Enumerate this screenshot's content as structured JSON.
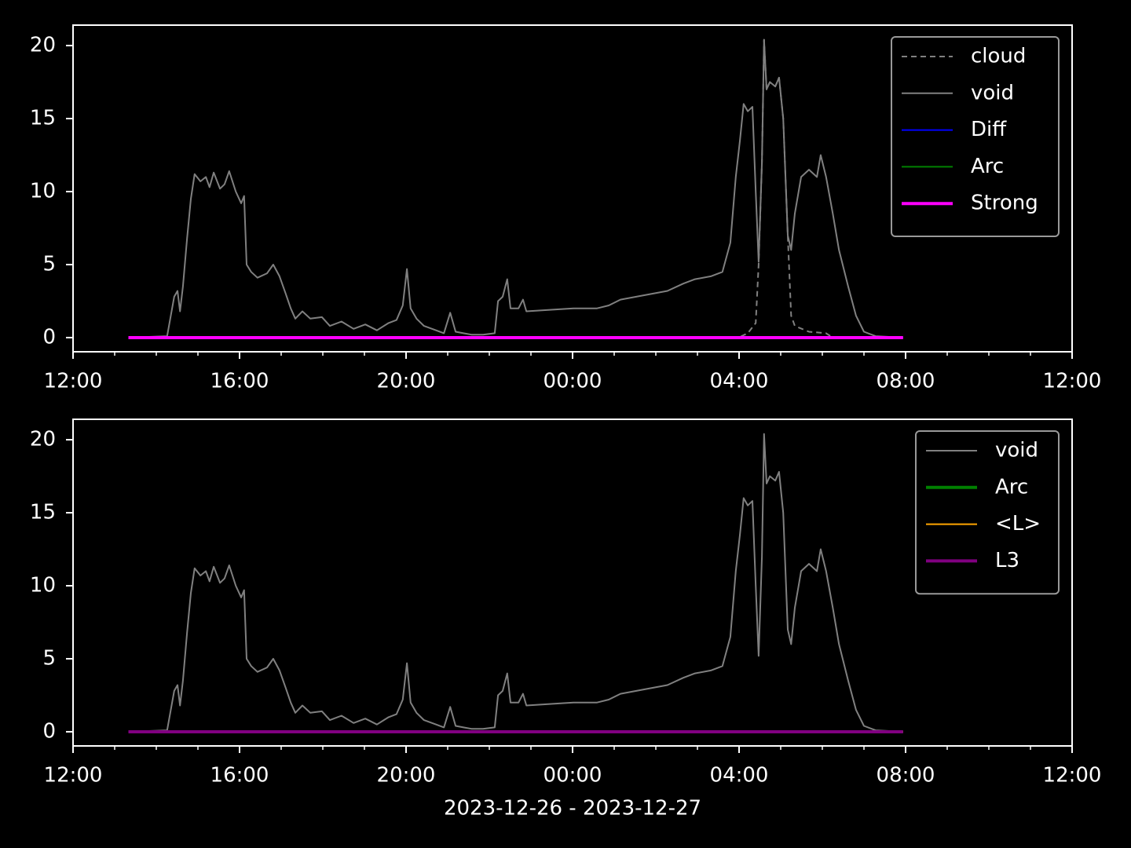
{
  "chart_data": [
    {
      "type": "line",
      "xlim": [
        0,
        24
      ],
      "xticks": [
        {
          "value": 0,
          "label": "12:00"
        },
        {
          "value": 4,
          "label": "16:00"
        },
        {
          "value": 8,
          "label": "20:00"
        },
        {
          "value": 12,
          "label": "00:00"
        },
        {
          "value": 16,
          "label": "04:00"
        },
        {
          "value": 20,
          "label": "08:00"
        },
        {
          "value": 24,
          "label": "12:00"
        }
      ],
      "xminorticks": [
        1,
        2,
        3,
        5,
        6,
        7,
        9,
        10,
        11,
        13,
        14,
        15,
        17,
        18,
        19,
        21,
        22,
        23
      ],
      "ylim": [
        -0.97,
        21.4
      ],
      "yticks": [
        0,
        5,
        10,
        15,
        20
      ],
      "legend": "upper right",
      "series": [
        {
          "name": "cloud",
          "color": "#808080",
          "linestyle": "dashed",
          "linewidth": 2,
          "x": [
            1.33,
            15.98,
            16.21,
            16.4,
            16.47,
            16.55,
            16.6,
            16.66,
            16.74,
            16.87,
            16.96,
            17.06,
            17.17,
            17.25,
            17.34,
            17.68,
            18.09,
            18.25,
            19.94
          ],
          "values": [
            0,
            0,
            0.3,
            1.0,
            5.0,
            12.0,
            20.4,
            17.0,
            17.5,
            17.2,
            17.8,
            15.0,
            7.0,
            1.5,
            0.8,
            0.4,
            0.3,
            0,
            0
          ]
        },
        {
          "name": "void",
          "color": "#808080",
          "linestyle": "solid",
          "linewidth": 2,
          "x": [
            1.33,
            2.26,
            2.43,
            2.51,
            2.57,
            2.64,
            2.74,
            2.83,
            2.92,
            3.06,
            3.19,
            3.28,
            3.38,
            3.53,
            3.64,
            3.75,
            3.91,
            4.04,
            4.11,
            4.17,
            4.28,
            4.43,
            4.66,
            4.81,
            4.96,
            5.11,
            5.23,
            5.34,
            5.51,
            5.7,
            5.98,
            6.17,
            6.45,
            6.74,
            7.02,
            7.3,
            7.58,
            7.77,
            7.92,
            8.02,
            8.11,
            8.25,
            8.43,
            8.72,
            8.91,
            9.06,
            9.19,
            9.38,
            9.57,
            9.85,
            10.13,
            10.21,
            10.32,
            10.43,
            10.51,
            10.7,
            10.81,
            10.89,
            11.45,
            12.02,
            12.58,
            12.87,
            13.15,
            13.72,
            14.28,
            14.66,
            14.94,
            15.32,
            15.6,
            15.79,
            15.92,
            16.02,
            16.11,
            16.21,
            16.32,
            16.4,
            16.47,
            16.55,
            16.6,
            16.66,
            16.74,
            16.87,
            16.96,
            17.06,
            17.17,
            17.25,
            17.34,
            17.49,
            17.68,
            17.87,
            17.96,
            18.09,
            18.25,
            18.4,
            18.62,
            18.81,
            19.0,
            19.28,
            19.94
          ],
          "values": [
            0,
            0.1,
            2.8,
            3.2,
            1.8,
            3.5,
            6.8,
            9.5,
            11.2,
            10.7,
            11.0,
            10.3,
            11.3,
            10.2,
            10.5,
            11.4,
            10.0,
            9.2,
            9.7,
            5.0,
            4.5,
            4.1,
            4.4,
            5.0,
            4.2,
            3.0,
            2.0,
            1.3,
            1.8,
            1.3,
            1.4,
            0.8,
            1.1,
            0.6,
            0.9,
            0.5,
            1.0,
            1.2,
            2.2,
            4.7,
            2.0,
            1.3,
            0.8,
            0.5,
            0.3,
            1.7,
            0.4,
            0.3,
            0.2,
            0.2,
            0.3,
            2.5,
            2.8,
            4.0,
            2.0,
            2.0,
            2.6,
            1.8,
            1.9,
            2.0,
            2.0,
            2.2,
            2.6,
            2.9,
            3.2,
            3.7,
            4.0,
            4.2,
            4.5,
            6.5,
            11.0,
            13.5,
            16.0,
            15.5,
            15.8,
            10.0,
            5.2,
            12.0,
            20.4,
            17.0,
            17.5,
            17.2,
            17.8,
            15.0,
            7.0,
            6.0,
            8.5,
            11.0,
            11.5,
            11.0,
            12.5,
            11.0,
            8.5,
            6.0,
            3.5,
            1.5,
            0.4,
            0.1,
            0
          ]
        },
        {
          "name": "Diff",
          "color": "#0000ff",
          "linestyle": "solid",
          "linewidth": 2,
          "x": [
            1.33,
            19.94
          ],
          "values": [
            0,
            0
          ]
        },
        {
          "name": "Arc",
          "color": "#008000",
          "linestyle": "solid",
          "linewidth": 2,
          "x": [
            1.33,
            19.94
          ],
          "values": [
            0,
            0
          ]
        },
        {
          "name": "Strong",
          "color": "#ff00ff",
          "linestyle": "solid",
          "linewidth": 4,
          "x": [
            1.33,
            19.94
          ],
          "values": [
            0,
            0
          ]
        }
      ]
    },
    {
      "type": "line",
      "xlabel": "2023-12-26 - 2023-12-27",
      "xlim": [
        0,
        24
      ],
      "xticks": [
        {
          "value": 0,
          "label": "12:00"
        },
        {
          "value": 4,
          "label": "16:00"
        },
        {
          "value": 8,
          "label": "20:00"
        },
        {
          "value": 12,
          "label": "00:00"
        },
        {
          "value": 16,
          "label": "04:00"
        },
        {
          "value": 20,
          "label": "08:00"
        },
        {
          "value": 24,
          "label": "12:00"
        }
      ],
      "xminorticks": [
        1,
        2,
        3,
        5,
        6,
        7,
        9,
        10,
        11,
        13,
        14,
        15,
        17,
        18,
        19,
        21,
        22,
        23
      ],
      "ylim": [
        -0.97,
        21.4
      ],
      "yticks": [
        0,
        5,
        10,
        15,
        20
      ],
      "legend": "upper right",
      "series": [
        {
          "name": "void",
          "color": "#808080",
          "linestyle": "solid",
          "linewidth": 2,
          "x": [
            1.33,
            2.26,
            2.43,
            2.51,
            2.57,
            2.64,
            2.74,
            2.83,
            2.92,
            3.06,
            3.19,
            3.28,
            3.38,
            3.53,
            3.64,
            3.75,
            3.91,
            4.04,
            4.11,
            4.17,
            4.28,
            4.43,
            4.66,
            4.81,
            4.96,
            5.11,
            5.23,
            5.34,
            5.51,
            5.7,
            5.98,
            6.17,
            6.45,
            6.74,
            7.02,
            7.3,
            7.58,
            7.77,
            7.92,
            8.02,
            8.11,
            8.25,
            8.43,
            8.72,
            8.91,
            9.06,
            9.19,
            9.38,
            9.57,
            9.85,
            10.13,
            10.21,
            10.32,
            10.43,
            10.51,
            10.7,
            10.81,
            10.89,
            11.45,
            12.02,
            12.58,
            12.87,
            13.15,
            13.72,
            14.28,
            14.66,
            14.94,
            15.32,
            15.6,
            15.79,
            15.92,
            16.02,
            16.11,
            16.21,
            16.32,
            16.4,
            16.47,
            16.55,
            16.6,
            16.66,
            16.74,
            16.87,
            16.96,
            17.06,
            17.17,
            17.25,
            17.34,
            17.49,
            17.68,
            17.87,
            17.96,
            18.09,
            18.25,
            18.4,
            18.62,
            18.81,
            19.0,
            19.28,
            19.94
          ],
          "values": [
            0,
            0.1,
            2.8,
            3.2,
            1.8,
            3.5,
            6.8,
            9.5,
            11.2,
            10.7,
            11.0,
            10.3,
            11.3,
            10.2,
            10.5,
            11.4,
            10.0,
            9.2,
            9.7,
            5.0,
            4.5,
            4.1,
            4.4,
            5.0,
            4.2,
            3.0,
            2.0,
            1.3,
            1.8,
            1.3,
            1.4,
            0.8,
            1.1,
            0.6,
            0.9,
            0.5,
            1.0,
            1.2,
            2.2,
            4.7,
            2.0,
            1.3,
            0.8,
            0.5,
            0.3,
            1.7,
            0.4,
            0.3,
            0.2,
            0.2,
            0.3,
            2.5,
            2.8,
            4.0,
            2.0,
            2.0,
            2.6,
            1.8,
            1.9,
            2.0,
            2.0,
            2.2,
            2.6,
            2.9,
            3.2,
            3.7,
            4.0,
            4.2,
            4.5,
            6.5,
            11.0,
            13.5,
            16.0,
            15.5,
            15.8,
            10.0,
            5.2,
            12.0,
            20.4,
            17.0,
            17.5,
            17.2,
            17.8,
            15.0,
            7.0,
            6.0,
            8.5,
            11.0,
            11.5,
            11.0,
            12.5,
            11.0,
            8.5,
            6.0,
            3.5,
            1.5,
            0.4,
            0.1,
            0
          ]
        },
        {
          "name": "Arc",
          "color": "#008000",
          "linestyle": "solid",
          "linewidth": 4,
          "x": [
            1.33,
            19.94
          ],
          "values": [
            0,
            0
          ]
        },
        {
          "name": "<L>",
          "color": "#ffa500",
          "linestyle": "solid",
          "linewidth": 2,
          "x": [
            1.33,
            19.94
          ],
          "values": [
            0,
            0
          ]
        },
        {
          "name": "L3",
          "color": "#800080",
          "linestyle": "solid",
          "linewidth": 4,
          "x": [
            1.33,
            19.94
          ],
          "values": [
            0,
            0
          ]
        }
      ]
    }
  ]
}
